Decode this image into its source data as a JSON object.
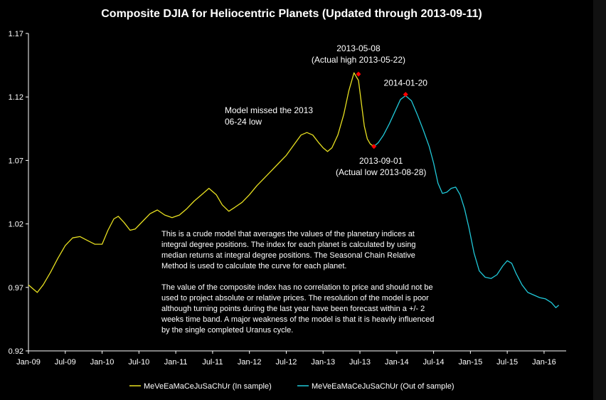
{
  "chart_data": {
    "type": "line",
    "title": "Composite DJIA for Heliocentric Planets (Updated through 2013-09-11)",
    "xlabel": "",
    "ylabel": "",
    "ylim": [
      0.92,
      1.17
    ],
    "yticks": [
      "1.17",
      "1.12",
      "1.07",
      "1.02",
      "0.97",
      "0.92"
    ],
    "ytick_values": [
      1.17,
      1.12,
      1.07,
      1.02,
      0.97,
      0.92
    ],
    "xlim": [
      2009.0,
      2016.3
    ],
    "xticks": [
      "Jan-09",
      "Jul-09",
      "Jan-10",
      "Jul-10",
      "Jan-11",
      "Jul-11",
      "Jan-12",
      "Jul-12",
      "Jan-13",
      "Jul-13",
      "Jan-14",
      "Jul-14",
      "Jan-15",
      "Jul-15",
      "Jan-16"
    ],
    "xtick_values": [
      2009.0,
      2009.5,
      2010.0,
      2010.5,
      2011.0,
      2011.5,
      2012.0,
      2012.5,
      2013.0,
      2013.5,
      2014.0,
      2014.5,
      2015.0,
      2015.5,
      2016.0
    ],
    "grid": false,
    "series": [
      {
        "name": "MeVeEaMaCeJuSaChUr (In sample)",
        "color": "#e8e020",
        "x": [
          2009.0,
          2009.06,
          2009.12,
          2009.2,
          2009.3,
          2009.4,
          2009.5,
          2009.6,
          2009.7,
          2009.8,
          2009.9,
          2010.0,
          2010.08,
          2010.16,
          2010.22,
          2010.3,
          2010.38,
          2010.45,
          2010.55,
          2010.65,
          2010.75,
          2010.85,
          2010.95,
          2011.05,
          2011.15,
          2011.25,
          2011.35,
          2011.45,
          2011.55,
          2011.63,
          2011.72,
          2011.8,
          2011.9,
          2012.0,
          2012.1,
          2012.2,
          2012.3,
          2012.4,
          2012.5,
          2012.6,
          2012.7,
          2012.78,
          2012.86,
          2012.94,
          2013.0,
          2013.06,
          2013.12,
          2013.2,
          2013.28,
          2013.35,
          2013.42,
          2013.48,
          2013.52,
          2013.56,
          2013.6,
          2013.64,
          2013.69
        ],
        "values": [
          0.972,
          0.969,
          0.966,
          0.972,
          0.982,
          0.993,
          1.003,
          1.009,
          1.01,
          1.007,
          1.004,
          1.004,
          1.015,
          1.024,
          1.026,
          1.021,
          1.015,
          1.016,
          1.022,
          1.028,
          1.031,
          1.027,
          1.025,
          1.027,
          1.032,
          1.038,
          1.043,
          1.048,
          1.043,
          1.035,
          1.03,
          1.033,
          1.037,
          1.043,
          1.05,
          1.056,
          1.062,
          1.068,
          1.074,
          1.082,
          1.09,
          1.092,
          1.09,
          1.084,
          1.08,
          1.077,
          1.08,
          1.09,
          1.106,
          1.125,
          1.139,
          1.133,
          1.115,
          1.097,
          1.087,
          1.083,
          1.081
        ]
      },
      {
        "name": "MeVeEaMaCeJuSaChUr (Out of sample)",
        "color": "#20c8d8",
        "x": [
          2013.69,
          2013.75,
          2013.82,
          2013.9,
          2013.98,
          2014.05,
          2014.12,
          2014.2,
          2014.28,
          2014.36,
          2014.44,
          2014.5,
          2014.56,
          2014.62,
          2014.68,
          2014.74,
          2014.8,
          2014.86,
          2014.92,
          2014.98,
          2015.05,
          2015.12,
          2015.2,
          2015.28,
          2015.36,
          2015.44,
          2015.5,
          2015.56,
          2015.62,
          2015.7,
          2015.78,
          2015.86,
          2015.94,
          2016.02,
          2016.1,
          2016.16,
          2016.2
        ],
        "values": [
          1.081,
          1.084,
          1.09,
          1.099,
          1.109,
          1.118,
          1.121,
          1.117,
          1.106,
          1.094,
          1.081,
          1.068,
          1.052,
          1.044,
          1.045,
          1.048,
          1.049,
          1.043,
          1.032,
          1.017,
          0.997,
          0.983,
          0.978,
          0.977,
          0.98,
          0.987,
          0.991,
          0.989,
          0.981,
          0.972,
          0.966,
          0.964,
          0.962,
          0.961,
          0.958,
          0.954,
          0.956
        ]
      }
    ],
    "markers": [
      {
        "x": 2013.48,
        "y": 1.138,
        "color": "#ff0000",
        "label": [
          "2013-05-08",
          "(Actual high 2013-05-22)"
        ]
      },
      {
        "x": 2013.69,
        "y": 1.081,
        "color": "#ff0000",
        "label": [
          "2013-09-01",
          "(Actual low 2013-08-28)"
        ]
      },
      {
        "x": 2014.12,
        "y": 1.122,
        "color": "#ff0000",
        "label": [
          "2014-01-20"
        ]
      }
    ],
    "annotations": [
      [
        "Model missed the 2013",
        "06-24 low"
      ]
    ],
    "note_paragraphs": [
      [
        "This is a crude model that averages the values of the planetary indices at",
        "integral degree positions.  The index for each planet is calculated by using",
        "median returns at integral degree positions.  The Seasonal Chain Relative",
        "Method is used to calculate the curve for each planet."
      ],
      [
        "The value of the composite index has no correlation to price and should not be",
        "used to project absolute or relative prices.  The resolution of the model is poor",
        "although turning points during the last year have been forecast within a +/- 2",
        "weeks time band.  A major weakness of the model is that it is heavily influenced",
        "by the single completed Uranus cycle."
      ]
    ],
    "legend": [
      "MeVeEaMaCeJuSaChUr (In sample)",
      "MeVeEaMaCeJuSaChUr (Out of sample)"
    ],
    "legend_position": "bottom",
    "axis_color": "#ffffff",
    "background": "#000000"
  }
}
